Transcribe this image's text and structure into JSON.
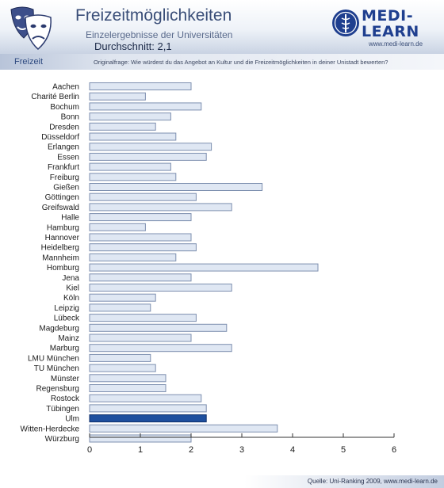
{
  "header": {
    "title": "Freizeitmöglichkeiten",
    "subtitle": "Einzelergebnisse der Universitäten",
    "average": "Durchschnitt: 2,1",
    "logo_line1": "MEDI-",
    "logo_line2": "LEARN",
    "logo_url": "www.medi-learn.de"
  },
  "section": {
    "label": "Freizeit",
    "question": "Originalfrage: Wie würdest du das Angebot an Kultur und die Freizeitmöglichkeiten in deiner Unistadt bewerten?"
  },
  "footer": {
    "source": "Quelle: Uni-Ranking 2009, www.medi-learn.de"
  },
  "colors": {
    "bar_fill": "#dfe7f3",
    "bar_border": "#7d8faf",
    "highlight_fill": "#1e4f9e",
    "brand": "#1f3f8f"
  },
  "chart_data": {
    "type": "bar",
    "orientation": "horizontal",
    "categories": [
      "Aachen",
      "Charité  Berlin",
      "Bochum",
      "Bonn",
      "Dresden",
      "Düsseldorf",
      "Erlangen",
      "Essen",
      "Frankfurt",
      "Freiburg",
      "Gießen",
      "Göttingen",
      "Greifswald",
      "Halle",
      "Hamburg",
      "Hannover",
      "Heidelberg",
      "Mannheim",
      "Homburg",
      "Jena",
      "Kiel",
      "Köln",
      "Leipzig",
      "Lübeck",
      "Magdeburg",
      "Mainz",
      "Marburg",
      "LMU München",
      "TU München",
      "Münster",
      "Regensburg",
      "Rostock",
      "Tübingen",
      "Ulm",
      "Witten-Herdecke",
      "Würzburg"
    ],
    "values": [
      2.0,
      1.1,
      2.2,
      1.6,
      1.3,
      1.7,
      2.4,
      2.3,
      1.6,
      1.7,
      3.4,
      2.1,
      2.8,
      2.0,
      1.1,
      2.0,
      2.1,
      1.7,
      4.5,
      2.0,
      2.8,
      1.3,
      1.2,
      2.1,
      2.7,
      2.0,
      2.8,
      1.2,
      1.3,
      1.5,
      1.5,
      2.2,
      2.3,
      2.3,
      3.7,
      2.0
    ],
    "highlight": "Ulm",
    "xlim": [
      0,
      6
    ],
    "xticks": [
      "0",
      "1",
      "2",
      "3",
      "4",
      "5",
      "6"
    ],
    "grid": false
  }
}
